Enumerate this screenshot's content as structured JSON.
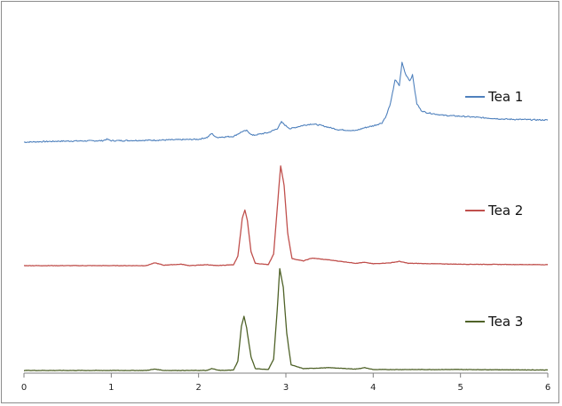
{
  "chart_data": {
    "type": "line",
    "title": "",
    "xlabel": "",
    "ylabel": "",
    "xlim": [
      0,
      6
    ],
    "x_ticks": [
      "0",
      "1",
      "2",
      "3",
      "4",
      "5",
      "6"
    ],
    "grid": false,
    "legend_placement": "right, beside each trace",
    "series": [
      {
        "name": "Tea 1",
        "color": "#4f81bd",
        "points": [
          [
            0.0,
            0.0
          ],
          [
            0.4,
            0.02
          ],
          [
            0.9,
            0.03
          ],
          [
            0.95,
            0.06
          ],
          [
            1.0,
            0.03
          ],
          [
            1.5,
            0.04
          ],
          [
            2.0,
            0.06
          ],
          [
            2.1,
            0.1
          ],
          [
            2.15,
            0.18
          ],
          [
            2.2,
            0.1
          ],
          [
            2.4,
            0.12
          ],
          [
            2.5,
            0.22
          ],
          [
            2.55,
            0.24
          ],
          [
            2.62,
            0.14
          ],
          [
            2.8,
            0.2
          ],
          [
            2.9,
            0.28
          ],
          [
            2.95,
            0.42
          ],
          [
            3.0,
            0.34
          ],
          [
            3.05,
            0.28
          ],
          [
            3.2,
            0.35
          ],
          [
            3.3,
            0.38
          ],
          [
            3.4,
            0.35
          ],
          [
            3.6,
            0.26
          ],
          [
            3.8,
            0.24
          ],
          [
            3.9,
            0.3
          ],
          [
            4.0,
            0.34
          ],
          [
            4.1,
            0.4
          ],
          [
            4.15,
            0.55
          ],
          [
            4.2,
            0.82
          ],
          [
            4.25,
            1.3
          ],
          [
            4.3,
            1.18
          ],
          [
            4.33,
            1.66
          ],
          [
            4.37,
            1.42
          ],
          [
            4.42,
            1.28
          ],
          [
            4.45,
            1.4
          ],
          [
            4.5,
            0.8
          ],
          [
            4.55,
            0.66
          ],
          [
            4.6,
            0.62
          ],
          [
            4.8,
            0.56
          ],
          [
            5.0,
            0.54
          ],
          [
            5.5,
            0.48
          ],
          [
            6.0,
            0.46
          ]
        ]
      },
      {
        "name": "Tea 2",
        "color": "#c0504d",
        "points": [
          [
            0.0,
            0.0
          ],
          [
            1.4,
            0.0
          ],
          [
            1.5,
            0.06
          ],
          [
            1.6,
            0.01
          ],
          [
            1.8,
            0.03
          ],
          [
            1.9,
            0.0
          ],
          [
            2.1,
            0.02
          ],
          [
            2.2,
            0.0
          ],
          [
            2.4,
            0.02
          ],
          [
            2.45,
            0.2
          ],
          [
            2.5,
            1.0
          ],
          [
            2.53,
            1.18
          ],
          [
            2.56,
            0.95
          ],
          [
            2.6,
            0.3
          ],
          [
            2.65,
            0.05
          ],
          [
            2.8,
            0.02
          ],
          [
            2.86,
            0.25
          ],
          [
            2.9,
            1.2
          ],
          [
            2.94,
            2.12
          ],
          [
            2.98,
            1.7
          ],
          [
            3.02,
            0.7
          ],
          [
            3.07,
            0.15
          ],
          [
            3.2,
            0.1
          ],
          [
            3.3,
            0.16
          ],
          [
            3.5,
            0.12
          ],
          [
            3.8,
            0.05
          ],
          [
            3.9,
            0.07
          ],
          [
            4.0,
            0.04
          ],
          [
            4.2,
            0.06
          ],
          [
            4.3,
            0.09
          ],
          [
            4.4,
            0.05
          ],
          [
            5.0,
            0.03
          ],
          [
            6.0,
            0.02
          ]
        ]
      },
      {
        "name": "Tea 3",
        "color": "#4f6228",
        "points": [
          [
            0.0,
            0.0
          ],
          [
            1.4,
            0.0
          ],
          [
            1.5,
            0.03
          ],
          [
            1.6,
            0.0
          ],
          [
            2.1,
            0.0
          ],
          [
            2.15,
            0.04
          ],
          [
            2.25,
            0.0
          ],
          [
            2.4,
            0.01
          ],
          [
            2.45,
            0.2
          ],
          [
            2.49,
            0.95
          ],
          [
            2.52,
            1.17
          ],
          [
            2.55,
            0.92
          ],
          [
            2.6,
            0.3
          ],
          [
            2.65,
            0.04
          ],
          [
            2.8,
            0.02
          ],
          [
            2.86,
            0.25
          ],
          [
            2.9,
            1.3
          ],
          [
            2.93,
            2.2
          ],
          [
            2.97,
            1.8
          ],
          [
            3.01,
            0.8
          ],
          [
            3.06,
            0.12
          ],
          [
            3.2,
            0.04
          ],
          [
            3.5,
            0.06
          ],
          [
            3.8,
            0.03
          ],
          [
            3.9,
            0.06
          ],
          [
            4.0,
            0.02
          ],
          [
            5.0,
            0.02
          ],
          [
            6.0,
            0.01
          ]
        ]
      }
    ]
  }
}
